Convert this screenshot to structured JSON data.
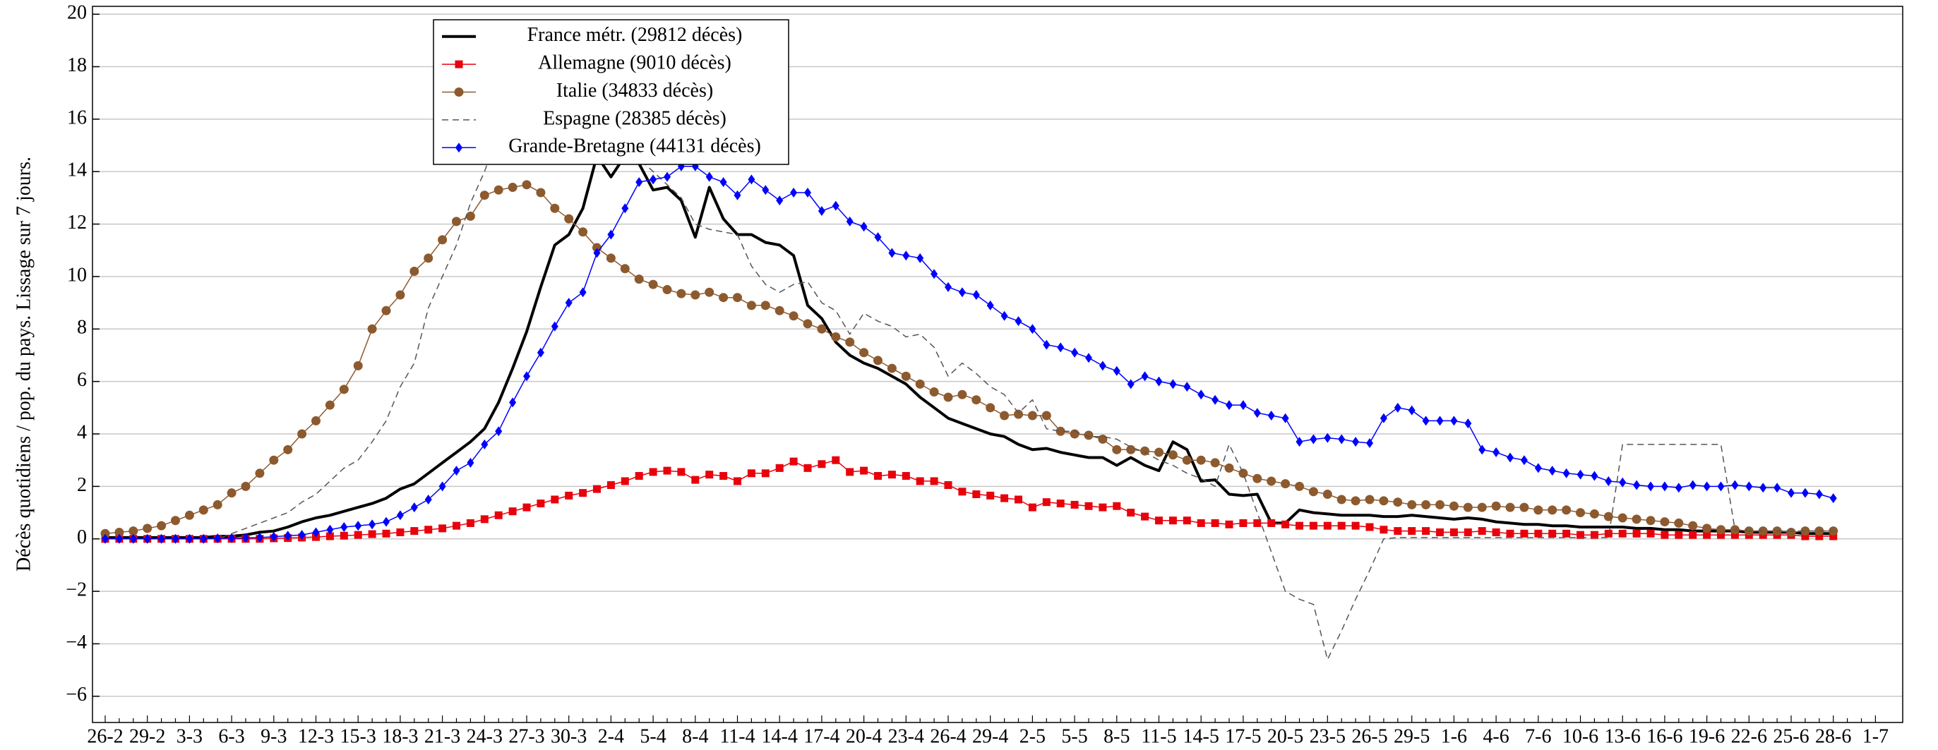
{
  "chart_data": {
    "type": "line",
    "y_label": "Décès quotidiens / pop. du pays. Lissage sur 7 jours.",
    "categories": [
      "26-2",
      null,
      null,
      "29-2",
      null,
      null,
      "3-3",
      null,
      null,
      "6-3",
      null,
      null,
      "9-3",
      null,
      null,
      "12-3",
      null,
      null,
      "15-3",
      null,
      null,
      "18-3",
      null,
      null,
      "21-3",
      null,
      null,
      "24-3",
      null,
      null,
      "27-3",
      null,
      null,
      "30-3",
      null,
      null,
      "2-4",
      null,
      null,
      "5-4",
      null,
      null,
      "8-4",
      null,
      null,
      "11-4",
      null,
      null,
      "14-4",
      null,
      null,
      "17-4",
      null,
      null,
      "20-4",
      null,
      null,
      "23-4",
      null,
      null,
      "26-4",
      null,
      null,
      "29-4",
      null,
      null,
      "2-5",
      null,
      null,
      "5-5",
      null,
      null,
      "8-5",
      null,
      null,
      "11-5",
      null,
      null,
      "14-5",
      null,
      null,
      "17-5",
      null,
      null,
      "20-5",
      null,
      null,
      "23-5",
      null,
      null,
      "26-5",
      null,
      null,
      "29-5",
      null,
      null,
      "1-6",
      null,
      null,
      "4-6",
      null,
      null,
      "7-6",
      null,
      null,
      "10-6",
      null,
      null,
      "13-6",
      null,
      null,
      "16-6",
      null,
      null,
      "19-6",
      null,
      null,
      "22-6",
      null,
      null,
      "25-6",
      null,
      null,
      "28-6",
      null,
      null,
      "1-7"
    ],
    "ylim": [
      -7,
      20.3
    ],
    "yticks": [
      {
        "value": -6,
        "label": "−6"
      },
      {
        "value": -4,
        "label": "−4"
      },
      {
        "value": -2,
        "label": "−2"
      },
      0,
      2,
      4,
      6,
      8,
      10,
      12,
      14,
      16,
      18,
      20
    ],
    "grid": true,
    "legend": "upper left",
    "series": [
      {
        "name": "France métr. (29812 décès)",
        "color": "#000000",
        "marker": "none",
        "dash": false,
        "width": 4,
        "values": [
          0.05,
          0.05,
          0.05,
          0.05,
          0.05,
          0.05,
          0.05,
          0.05,
          0.1,
          0.1,
          0.15,
          0.25,
          0.3,
          0.45,
          0.65,
          0.8,
          0.9,
          1.05,
          1.2,
          1.35,
          1.55,
          1.9,
          2.1,
          2.5,
          2.9,
          3.3,
          3.7,
          4.2,
          5.2,
          6.5,
          7.9,
          9.6,
          11.2,
          11.6,
          12.6,
          14.6,
          13.8,
          14.6,
          14.3,
          13.3,
          13.4,
          12.9,
          11.5,
          13.4,
          12.2,
          11.6,
          11.6,
          11.3,
          11.2,
          10.8,
          8.9,
          8.4,
          7.5,
          7.0,
          6.7,
          6.5,
          6.2,
          5.9,
          5.4,
          5.0,
          4.6,
          4.4,
          4.2,
          4.0,
          3.9,
          3.6,
          3.4,
          3.45,
          3.3,
          3.2,
          3.1,
          3.1,
          2.8,
          3.1,
          2.8,
          2.6,
          3.7,
          3.4,
          2.2,
          2.25,
          1.7,
          1.65,
          1.7,
          0.6,
          0.6,
          1.1,
          1.0,
          0.95,
          0.9,
          0.9,
          0.9,
          0.85,
          0.85,
          0.9,
          0.85,
          0.8,
          0.75,
          0.8,
          0.75,
          0.65,
          0.6,
          0.55,
          0.55,
          0.5,
          0.5,
          0.45,
          0.45,
          0.45,
          0.45,
          0.4,
          0.4,
          0.35,
          0.35,
          0.3,
          0.3,
          0.3,
          0.3,
          0.25,
          0.25,
          0.25,
          0.25,
          0.2,
          0.2,
          0.2,
          null,
          null,
          null
        ]
      },
      {
        "name": "Allemagne (9010 décès)",
        "color": "#e8000b",
        "marker": "square",
        "dash": false,
        "width": 1.5,
        "values": [
          0,
          0,
          0,
          0,
          0,
          0,
          0,
          0,
          0,
          0,
          0,
          0,
          0.02,
          0.03,
          0.05,
          0.07,
          0.1,
          0.12,
          0.15,
          0.18,
          0.2,
          0.25,
          0.3,
          0.35,
          0.4,
          0.5,
          0.6,
          0.75,
          0.9,
          1.05,
          1.2,
          1.35,
          1.5,
          1.65,
          1.75,
          1.9,
          2.05,
          2.2,
          2.4,
          2.55,
          2.6,
          2.55,
          2.25,
          2.45,
          2.4,
          2.2,
          2.5,
          2.5,
          2.7,
          2.95,
          2.7,
          2.85,
          3.0,
          2.55,
          2.6,
          2.4,
          2.45,
          2.4,
          2.2,
          2.2,
          2.05,
          1.8,
          1.7,
          1.65,
          1.55,
          1.5,
          1.2,
          1.4,
          1.35,
          1.3,
          1.25,
          1.2,
          1.25,
          1.0,
          0.85,
          0.7,
          0.7,
          0.7,
          0.6,
          0.6,
          0.55,
          0.6,
          0.6,
          0.6,
          0.55,
          0.5,
          0.5,
          0.5,
          0.5,
          0.5,
          0.45,
          0.35,
          0.3,
          0.3,
          0.3,
          0.25,
          0.25,
          0.25,
          0.3,
          0.25,
          0.2,
          0.2,
          0.2,
          0.2,
          0.2,
          0.15,
          0.15,
          0.2,
          0.2,
          0.2,
          0.2,
          0.15,
          0.15,
          0.15,
          0.15,
          0.15,
          0.15,
          0.15,
          0.15,
          0.15,
          0.15,
          0.1,
          0.1,
          0.1,
          null,
          null,
          null
        ]
      },
      {
        "name": "Italie (34833 décès)",
        "color": "#8c5a2e",
        "marker": "circle",
        "dash": false,
        "width": 1.5,
        "values": [
          0.2,
          0.25,
          0.3,
          0.4,
          0.5,
          0.7,
          0.9,
          1.1,
          1.3,
          1.75,
          2.0,
          2.5,
          3.0,
          3.4,
          4.0,
          4.5,
          5.1,
          5.7,
          6.6,
          8.0,
          8.7,
          9.3,
          10.2,
          10.7,
          11.4,
          12.1,
          12.3,
          13.1,
          13.3,
          13.4,
          13.5,
          13.2,
          12.6,
          12.2,
          11.7,
          11.1,
          10.7,
          10.3,
          9.9,
          9.7,
          9.5,
          9.35,
          9.3,
          9.4,
          9.2,
          9.2,
          8.9,
          8.9,
          8.7,
          8.5,
          8.2,
          8.0,
          7.7,
          7.5,
          7.1,
          6.8,
          6.5,
          6.2,
          5.9,
          5.6,
          5.4,
          5.5,
          5.3,
          5.0,
          4.7,
          4.75,
          4.7,
          4.7,
          4.1,
          4.0,
          3.95,
          3.8,
          3.4,
          3.4,
          3.35,
          3.3,
          3.2,
          3.0,
          3.0,
          2.9,
          2.7,
          2.5,
          2.3,
          2.2,
          2.1,
          2.0,
          1.8,
          1.7,
          1.5,
          1.45,
          1.5,
          1.45,
          1.4,
          1.3,
          1.3,
          1.3,
          1.25,
          1.2,
          1.2,
          1.25,
          1.2,
          1.2,
          1.1,
          1.1,
          1.1,
          1.0,
          0.95,
          0.85,
          0.8,
          0.75,
          0.7,
          0.65,
          0.6,
          0.5,
          0.4,
          0.35,
          0.35,
          0.3,
          0.3,
          0.3,
          0.25,
          0.3,
          0.3,
          0.3,
          null,
          null,
          null
        ]
      },
      {
        "name": "Espagne (28385 décès)",
        "color": "#555555",
        "marker": "none",
        "dash": true,
        "width": 1.5,
        "values": [
          0,
          0,
          0,
          0,
          0,
          0,
          0,
          0,
          0,
          0.2,
          0.4,
          0.6,
          0.8,
          1.0,
          1.4,
          1.7,
          2.2,
          2.7,
          3.0,
          3.7,
          4.5,
          5.8,
          6.7,
          8.8,
          10.0,
          11.2,
          12.8,
          14.0,
          15.5,
          17.0,
          18.0,
          18.3,
          18.5,
          18.0,
          17.3,
          16.0,
          15.2,
          14.8,
          14.5,
          14.0,
          13.5,
          13.0,
          12.0,
          11.8,
          11.7,
          11.6,
          10.4,
          9.7,
          9.4,
          9.7,
          9.8,
          9.0,
          8.7,
          7.8,
          8.6,
          8.3,
          8.1,
          7.7,
          7.8,
          7.3,
          6.2,
          6.7,
          6.3,
          5.8,
          5.5,
          4.8,
          5.3,
          4.2,
          4.1,
          4.1,
          3.9,
          3.9,
          3.8,
          3.5,
          3.3,
          3.0,
          2.8,
          2.5,
          2.3,
          2.0,
          3.6,
          2.5,
          1.0,
          -0.5,
          -2.0,
          -2.3,
          -2.5,
          -4.6,
          -3.5,
          -2.3,
          -1.2,
          0.0,
          0.05,
          0.05,
          0.05,
          0.05,
          0.05,
          0.05,
          0.05,
          0.05,
          0.05,
          0.05,
          0.05,
          0.05,
          0.05,
          0.05,
          0.05,
          0.05,
          3.6,
          3.6,
          3.6,
          3.6,
          3.6,
          3.6,
          3.6,
          3.6,
          0.35,
          0.3,
          0.3,
          0.3,
          0.3,
          0.3,
          0.3,
          0.3,
          null,
          null,
          null
        ]
      },
      {
        "name": "Grande-Bretagne (44131 décès)",
        "color": "#0000ff",
        "marker": "diamond",
        "dash": false,
        "width": 1.5,
        "values": [
          0,
          0,
          0,
          0,
          0,
          0,
          0,
          0,
          0.02,
          0.03,
          0.04,
          0.05,
          0.08,
          0.12,
          0.15,
          0.25,
          0.35,
          0.45,
          0.5,
          0.55,
          0.65,
          0.9,
          1.2,
          1.5,
          2.0,
          2.6,
          2.9,
          3.6,
          4.1,
          5.2,
          6.2,
          7.1,
          8.1,
          9.0,
          9.4,
          10.9,
          11.6,
          12.6,
          13.6,
          13.7,
          13.8,
          14.2,
          14.2,
          13.8,
          13.6,
          13.1,
          13.7,
          13.3,
          12.9,
          13.2,
          13.2,
          12.5,
          12.7,
          12.1,
          11.9,
          11.5,
          10.9,
          10.8,
          10.7,
          10.1,
          9.6,
          9.4,
          9.3,
          8.9,
          8.5,
          8.3,
          8.0,
          7.4,
          7.3,
          7.1,
          6.9,
          6.6,
          6.4,
          5.9,
          6.2,
          6.0,
          5.9,
          5.8,
          5.5,
          5.3,
          5.1,
          5.1,
          4.8,
          4.7,
          4.6,
          3.7,
          3.8,
          3.85,
          3.8,
          3.7,
          3.65,
          4.6,
          5.0,
          4.9,
          4.5,
          4.5,
          4.5,
          4.4,
          3.4,
          3.3,
          3.1,
          3.0,
          2.7,
          2.6,
          2.5,
          2.45,
          2.4,
          2.2,
          2.15,
          2.05,
          2.0,
          2.0,
          1.95,
          2.05,
          2.0,
          2.0,
          2.05,
          2.0,
          1.95,
          1.95,
          1.75,
          1.75,
          1.7,
          1.55,
          null,
          null,
          null
        ]
      }
    ]
  }
}
